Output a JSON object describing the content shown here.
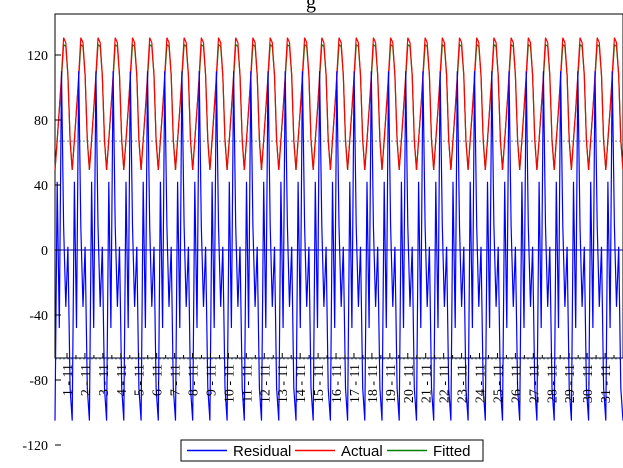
{
  "chart_data": {
    "type": "line",
    "title": "g",
    "xlabel": "",
    "ylabel": "",
    "ylim": [
      -125,
      125
    ],
    "yticks": [
      -120,
      -80,
      -40,
      0,
      40,
      80,
      120
    ],
    "categories": [
      "1 - 11",
      "2 - 11",
      "3 - 11",
      "4 - 11",
      "5 - 11",
      "6 - 11",
      "7 - 11",
      "8 - 11",
      "9 - 11",
      "10 - 11",
      "11 - 11",
      "12 - 11",
      "13 - 11",
      "14 - 11",
      "15 - 11",
      "16 - 11",
      "17 - 11",
      "18 - 11",
      "19 - 11",
      "20 - 11",
      "21 - 11",
      "22 - 11",
      "23 - 11",
      "24 - 11",
      "25 - 11",
      "26 - 11",
      "27 - 11",
      "28 - 11",
      "29 - 11",
      "30 - 11",
      "31 - 11"
    ],
    "residual_bands": [
      -67,
      67
    ],
    "cycles": 33,
    "series": [
      {
        "name": "Residual",
        "color": "#0000ff",
        "axis": "left",
        "cycle_values": [
          -105,
          42,
          -48,
          110,
          15,
          -35,
          2,
          -85
        ]
      },
      {
        "name": "Actual",
        "color": "#ff0000",
        "axis": "right",
        "cycle_values": [
          52,
          130,
          210,
          300,
          398,
          385,
          300,
          130
        ]
      },
      {
        "name": "Fitted",
        "color": "#008000",
        "axis": "right",
        "cycle_values": [
          52,
          130,
          210,
          290,
          380,
          375,
          300,
          130
        ]
      }
    ],
    "right_ylim": [
      -440,
      460
    ],
    "grid": false,
    "legend_position": "bottom-center"
  }
}
